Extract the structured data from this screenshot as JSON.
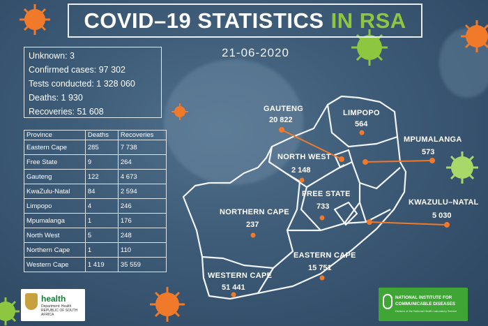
{
  "title": {
    "main": "COVID–19 STATISTICS",
    "accent": "IN RSA"
  },
  "date": "21-06-2020",
  "summary": {
    "unknown": "Unknown: 3",
    "confirmed": "Confirmed cases: 97 302",
    "tests": "Tests conducted: 1 328 060",
    "deaths": "Deaths: 1 930",
    "recoveries": "Recoveries: 51 608"
  },
  "table": {
    "headers": [
      "Province",
      "Deaths",
      "Recoveries"
    ],
    "rows": [
      [
        "Eastern Cape",
        "285",
        "7 738"
      ],
      [
        "Free State",
        "9",
        "264"
      ],
      [
        "Gauteng",
        "122",
        "4 673"
      ],
      [
        "KwaZulu-Natal",
        "84",
        "2 594"
      ],
      [
        "Limpopo",
        "4",
        "246"
      ],
      [
        "Mpumalanga",
        "1",
        "176"
      ],
      [
        "North West",
        "5",
        "248"
      ],
      [
        "Northern Cape",
        "1",
        "110"
      ],
      [
        "Western Cape",
        "1 419",
        "35 559"
      ]
    ]
  },
  "map": {
    "gauteng": {
      "label": "GAUTENG",
      "value": "20 822"
    },
    "limpopo": {
      "label": "LIMPOPO",
      "value": "564"
    },
    "mpumalanga": {
      "label": "MPUMALANGA",
      "value": "573"
    },
    "north_west": {
      "label": "NORTH WEST",
      "value": "2 148"
    },
    "free_state": {
      "label": "FREE STATE",
      "value": "733"
    },
    "kwazulu_natal": {
      "label": "KWAZULU–NATAL",
      "value": "5 030"
    },
    "northern_cape": {
      "label": "NORTHERN CAPE",
      "value": "237"
    },
    "eastern_cape": {
      "label": "EASTERN CAPE",
      "value": "15 751"
    },
    "western_cape": {
      "label": "WESTERN CAPE",
      "value": "51 441"
    }
  },
  "colors": {
    "accent_green": "#8dc63f",
    "marker_orange": "#f07a2a",
    "nicd_green": "#3fa535"
  },
  "logos": {
    "health": {
      "name": "health",
      "dept": "Department: Health",
      "country": "REPUBLIC OF SOUTH AFRICA"
    },
    "nicd": {
      "line1": "NATIONAL INSTITUTE FOR",
      "line2": "COMMUNICABLE DISEASES",
      "sub": "Division of the National Health Laboratory Service"
    }
  }
}
